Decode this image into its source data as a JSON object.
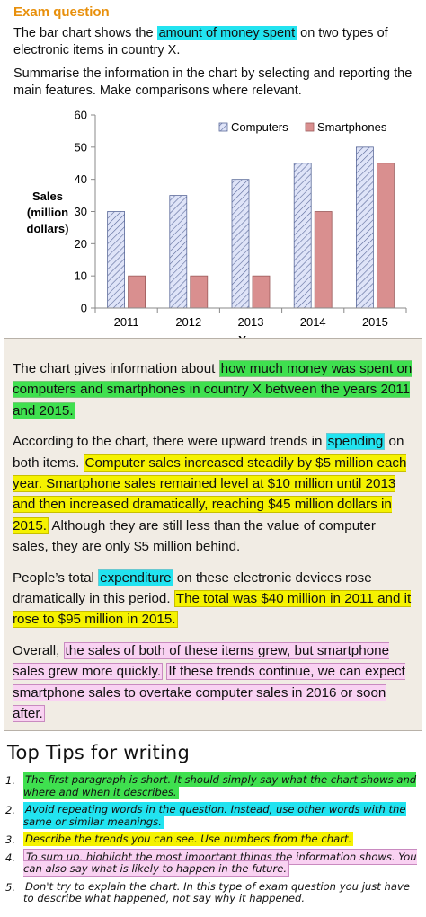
{
  "header": {
    "title": "Exam question",
    "intro_a": "The bar chart shows the ",
    "intro_hl": "amount of money spent",
    "intro_b": " on two types of electronic items in country X.",
    "instruction": "Summarise the information in the chart by selecting and reporting the main features. Make comparisons where relevant."
  },
  "chart_data": {
    "type": "bar",
    "categories": [
      "2011",
      "2012",
      "2013",
      "2014",
      "2015"
    ],
    "series": [
      {
        "name": "Computers",
        "values": [
          30,
          35,
          40,
          45,
          50
        ],
        "color": "#c8d0f0",
        "pattern": "diagonal-hatch"
      },
      {
        "name": "Smartphones",
        "values": [
          10,
          10,
          10,
          30,
          45
        ],
        "color": "#d98f8f"
      }
    ],
    "ylim": [
      0,
      60
    ],
    "yticks": [
      "0",
      "10",
      "20",
      "30",
      "40",
      "50",
      "60"
    ],
    "xlabel": "Year",
    "ylabel_lines": [
      "Sales",
      "(million",
      "dollars)"
    ],
    "legend_position": "top-right",
    "grid": false
  },
  "answer": {
    "p1_a": "The chart gives information about ",
    "p1_hl": "how much money was spent on computers and smartphones in country X between the years 2011 and 2015.",
    "p2_a": "According to the chart, there were upward trends in ",
    "p2_hl1": "spending",
    "p2_b": " on both items. ",
    "p2_hl2": "Computer sales increased steadily by $5 million each year. Smartphone sales remained level at $10 million until 2013 and then increased dramatically, reaching $45 million dollars in 2015.",
    "p2_c": " Although they are still less than the value of computer sales, they are only $5 million behind.",
    "p3_a": "People’s total ",
    "p3_hl1": "expenditure",
    "p3_b": " on these electronic devices rose dramatically in this period. ",
    "p3_hl2": "The total was $40 million in 2011 and it rose to $95 million in 2015.",
    "p4_a": "Overall, ",
    "p4_hl1": "the sales of both of these items grew, but smartphone sales grew more quickly.",
    "p4_b": " ",
    "p4_hl2": "If these trends continue, we can expect smartphone sales to overtake computer sales in 2016 or soon after."
  },
  "tips": {
    "title": "Top Tips for writing",
    "items": [
      {
        "num": "1.",
        "text": "The first paragraph is short. It should simply say what the chart shows and where and when it describes."
      },
      {
        "num": "2.",
        "text": "Avoid repeating words in the question. Instead, use other words with the same or similar meanings."
      },
      {
        "num": "3.",
        "text": "Describe the trends you can see. Use numbers from the chart."
      },
      {
        "num": "4.",
        "text": "To sum up, highlight the most important things the information shows. You can also say what is likely to happen in the future."
      },
      {
        "num": "5.",
        "text": "Don't try to explain the chart. In this type of exam question you just have to describe what happened, not say why it happened."
      }
    ]
  }
}
